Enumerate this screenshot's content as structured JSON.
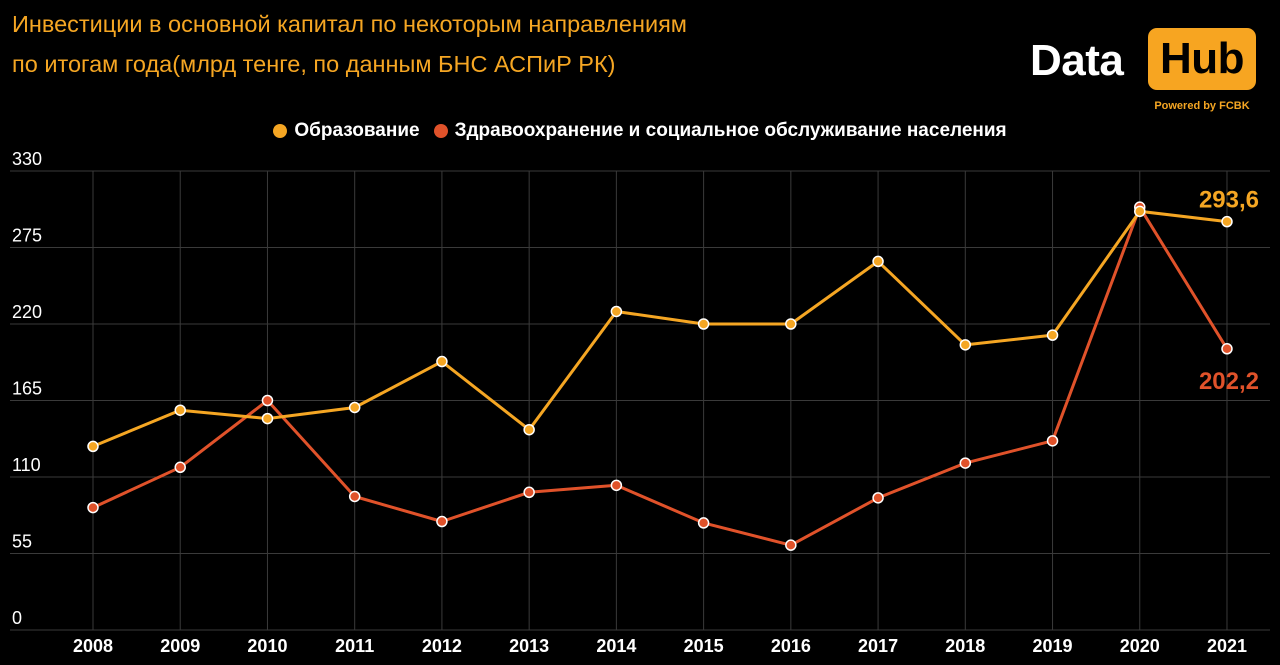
{
  "title_line1": "Инвестиции в основной капитал по некоторым направлениям",
  "title_line2": "по итогам года(млрд тенге, по данным БНС АСПиР РК)",
  "logo": {
    "word1": "Data",
    "word2": "Hub",
    "powered": "Powered by FCBK"
  },
  "colors": {
    "education": "#f5a623",
    "health": "#e0522a",
    "background": "#000000",
    "grid": "#3a3a3a"
  },
  "chart_data": {
    "type": "line",
    "categories": [
      "2008",
      "2009",
      "2010",
      "2011",
      "2012",
      "2013",
      "2014",
      "2015",
      "2016",
      "2017",
      "2018",
      "2019",
      "2020",
      "2021"
    ],
    "series": [
      {
        "name": "Образование",
        "values": [
          132,
          158,
          152,
          160,
          193,
          144,
          229,
          220,
          220,
          265,
          205,
          212,
          301,
          293.6
        ]
      },
      {
        "name": "Здравоохранение и социальное обслуживание населения",
        "values": [
          88,
          117,
          165,
          96,
          78,
          99,
          104,
          77,
          61,
          95,
          120,
          136,
          304,
          202.2
        ]
      }
    ],
    "yticks": [
      "0",
      "55",
      "110",
      "165",
      "220",
      "275",
      "330"
    ],
    "ylim": [
      0,
      330
    ],
    "end_labels": [
      "293,6",
      "202,2"
    ],
    "grid": true,
    "legend": "top-center"
  }
}
